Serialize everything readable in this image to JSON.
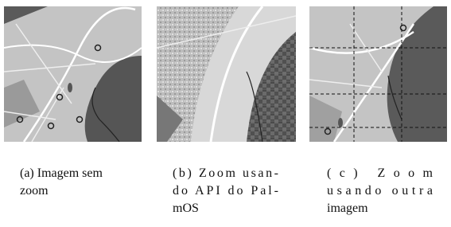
{
  "figures": [
    {
      "caption_lines": [
        "(a) Imagem sem",
        "zoom"
      ]
    },
    {
      "caption_lines": [
        "(b) Zoom usan-",
        "do API do Pal-",
        "mOS"
      ]
    },
    {
      "caption_lines": [
        "(c) Zoom",
        "usando outra",
        "imagem"
      ]
    }
  ]
}
